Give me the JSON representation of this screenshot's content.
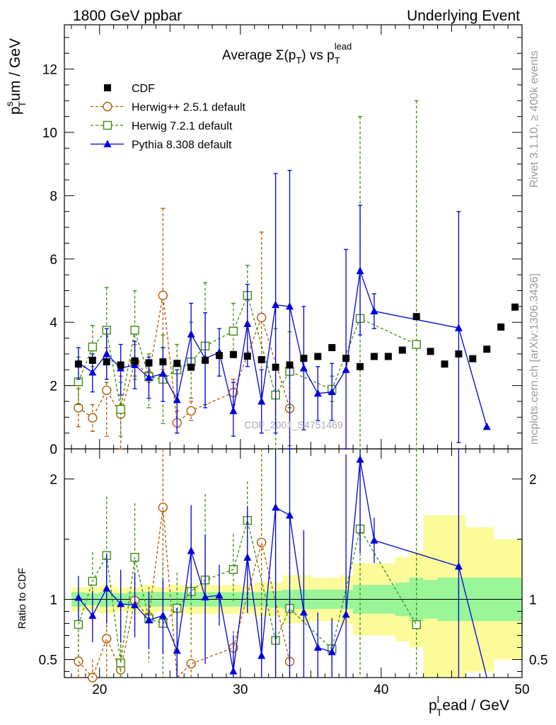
{
  "header": {
    "left": "1800 GeV ppbar",
    "right": "Underlying Event"
  },
  "side_labels": {
    "rivet": "Rivet 3.1.10, ≥ 400k events",
    "mcplots": "mcplots.cern.ch [arXiv:1306.3436]"
  },
  "watermark": "CDF_2001_S4751469",
  "chart_data": {
    "type": "scatter",
    "title": {
      "base": "Average Σ(p",
      "sub1": "T",
      "mid": ") vs p",
      "sub2": "T",
      "sup2": "lead"
    },
    "ylabel": {
      "base": "p",
      "sup": "s",
      "sub": "T",
      "rest": "um / GeV"
    },
    "xlabel": {
      "base": "p",
      "sup": "l",
      "sub": "T",
      "rest": "ead / GeV"
    },
    "ratio_ylabel": "Ratio to CDF",
    "xlim": [
      17.5,
      50
    ],
    "ylim": [
      0,
      13.4
    ],
    "ratio_ylim": [
      0.35,
      2.25
    ],
    "x_ticks": [
      20,
      30,
      40,
      50
    ],
    "y_ticks": [
      0,
      2,
      4,
      6,
      8,
      10,
      12
    ],
    "ratio_ticks": [
      0.5,
      1,
      2
    ],
    "colors": {
      "cdf": "#000000",
      "herwigpp": "#b35a00",
      "herwig7": "#3f8c0f",
      "pythia": "#0000dd",
      "band_inner": "#98f598",
      "band_outer": "#fbfb9a"
    },
    "legend": [
      {
        "key": "cdf",
        "label": "CDF"
      },
      {
        "key": "herwigpp",
        "label": "Herwig++ 2.5.1 default"
      },
      {
        "key": "herwig7",
        "label": "Herwig 7.2.1 default"
      },
      {
        "key": "pythia",
        "label": "Pythia 8.308 default"
      }
    ],
    "cdf": {
      "x": [
        18.5,
        19.5,
        20.5,
        21.5,
        22.5,
        23.5,
        24.5,
        25.5,
        26.5,
        27.5,
        28.5,
        29.5,
        30.5,
        31.5,
        32.5,
        33.5,
        34.5,
        35.5,
        36.5,
        37.5,
        38.5,
        39.5,
        40.5,
        41.5,
        42.5,
        43.5,
        44.5,
        45.5,
        46.5,
        47.5,
        48.5,
        49.5
      ],
      "y": [
        2.68,
        2.8,
        2.75,
        2.65,
        2.78,
        2.72,
        2.75,
        2.7,
        2.58,
        2.8,
        2.95,
        2.98,
        2.93,
        2.82,
        2.58,
        2.65,
        2.86,
        2.92,
        3.2,
        2.86,
        2.6,
        2.92,
        2.92,
        3.12,
        4.18,
        3.08,
        2.68,
        3.0,
        2.85,
        3.15,
        3.85,
        4.48
      ]
    },
    "herwigpp": {
      "x": [
        18.5,
        19.5,
        20.5,
        21.5,
        22.5,
        23.5,
        24.5,
        25.5,
        26.5,
        29.5,
        31.5,
        33.5
      ],
      "y": [
        1.3,
        0.98,
        1.85,
        1.1,
        2.75,
        2.32,
        4.85,
        0.82,
        1.2,
        1.78,
        4.15,
        1.28
      ],
      "lo": [
        0.7,
        0.55,
        0.4,
        0.0,
        2.3,
        2.1,
        2.5,
        0.5,
        0.9,
        1.4,
        1.5,
        0.1
      ],
      "hi": [
        1.9,
        1.4,
        3.2,
        2.3,
        3.3,
        2.6,
        7.6,
        1.2,
        1.5,
        2.2,
        6.85,
        2.6
      ]
    },
    "herwig7": {
      "x": [
        18.5,
        19.5,
        20.5,
        21.5,
        22.5,
        23.5,
        24.5,
        25.5,
        26.5,
        27.5,
        29.5,
        30.5,
        32.5,
        33.5,
        36.5,
        38.5,
        42.5
      ],
      "y": [
        2.12,
        3.22,
        3.75,
        1.25,
        3.75,
        2.28,
        2.2,
        2.5,
        2.75,
        3.25,
        3.72,
        4.85,
        1.7,
        2.45,
        1.88,
        4.12,
        3.3
      ],
      "lo": [
        1.4,
        2.6,
        2.1,
        0.4,
        2.2,
        1.3,
        0.8,
        1.7,
        1.6,
        1.4,
        2.9,
        3.9,
        0.0,
        1.3,
        1.5,
        0.0,
        0.0
      ],
      "hi": [
        2.9,
        3.9,
        5.1,
        2.1,
        5.0,
        3.0,
        3.6,
        3.3,
        4.0,
        5.25,
        4.6,
        5.8,
        3.8,
        3.7,
        2.3,
        10.5,
        11.0
      ]
    },
    "pythia": {
      "x": [
        18.5,
        19.5,
        20.5,
        21.5,
        22.5,
        23.5,
        24.5,
        25.5,
        26.5,
        27.5,
        28.5,
        29.5,
        30.5,
        31.5,
        32.5,
        33.5,
        34.5,
        35.5,
        36.5,
        37.5,
        38.5,
        39.5,
        45.5,
        47.5
      ],
      "y": [
        2.72,
        2.42,
        3.0,
        2.55,
        2.65,
        2.25,
        2.38,
        1.55,
        3.62,
        2.85,
        3.05,
        1.2,
        3.95,
        1.5,
        4.55,
        4.5,
        2.55,
        1.75,
        1.8,
        2.5,
        5.62,
        4.35,
        3.82,
        0.7
      ],
      "lo": [
        2.2,
        1.8,
        2.2,
        1.7,
        1.9,
        1.6,
        1.5,
        0.5,
        2.6,
        1.3,
        2.3,
        0.4,
        2.6,
        0.5,
        0.5,
        0.0,
        0.6,
        0.9,
        0.9,
        0.0,
        3.6,
        3.8,
        0.2,
        0.7
      ],
      "hi": [
        3.2,
        3.0,
        3.8,
        3.3,
        3.4,
        2.9,
        3.2,
        2.5,
        4.6,
        4.3,
        3.8,
        2.1,
        5.2,
        2.5,
        8.7,
        8.8,
        4.5,
        2.6,
        2.7,
        6.3,
        7.7,
        4.9,
        7.5,
        0.7
      ]
    },
    "ratio_band": {
      "x_edges": [
        18,
        19,
        20,
        21,
        22,
        23,
        24,
        25,
        26,
        27,
        28,
        29,
        30,
        31,
        32,
        33,
        34,
        35,
        36,
        37,
        38,
        39,
        40,
        41,
        42,
        43,
        44,
        45,
        46,
        47,
        48,
        49,
        50
      ],
      "inner": [
        0.06,
        0.05,
        0.06,
        0.05,
        0.06,
        0.06,
        0.06,
        0.06,
        0.06,
        0.06,
        0.06,
        0.06,
        0.06,
        0.06,
        0.07,
        0.08,
        0.08,
        0.08,
        0.08,
        0.08,
        0.12,
        0.12,
        0.12,
        0.14,
        0.18,
        0.16,
        0.18,
        0.18,
        0.18,
        0.18,
        0.18,
        0.18
      ],
      "outer": [
        0.1,
        0.1,
        0.12,
        0.1,
        0.1,
        0.12,
        0.1,
        0.12,
        0.12,
        0.12,
        0.12,
        0.12,
        0.12,
        0.14,
        0.14,
        0.2,
        0.2,
        0.18,
        0.18,
        0.2,
        0.3,
        0.3,
        0.3,
        0.35,
        0.4,
        0.7,
        0.7,
        0.7,
        0.6,
        0.6,
        0.5,
        0.5
      ]
    }
  }
}
